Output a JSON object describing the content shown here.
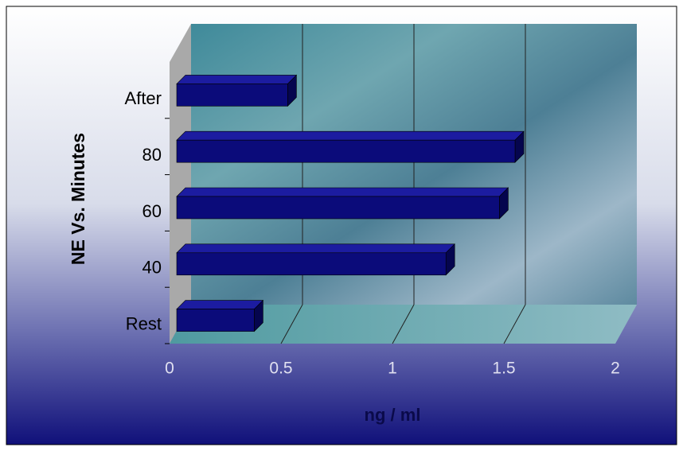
{
  "chart_data": {
    "type": "bar",
    "orientation": "horizontal",
    "y_label": "NE Vs. Minutes",
    "x_label": "ng / ml",
    "categories": [
      "Rest",
      "40",
      "60",
      "80",
      "After"
    ],
    "values": [
      0.38,
      1.24,
      1.48,
      1.55,
      0.53
    ],
    "color": "#0b0b7a",
    "xlim": [
      0,
      2
    ],
    "xticks": [
      0,
      0.5,
      1,
      1.5,
      2
    ],
    "grid": true
  }
}
